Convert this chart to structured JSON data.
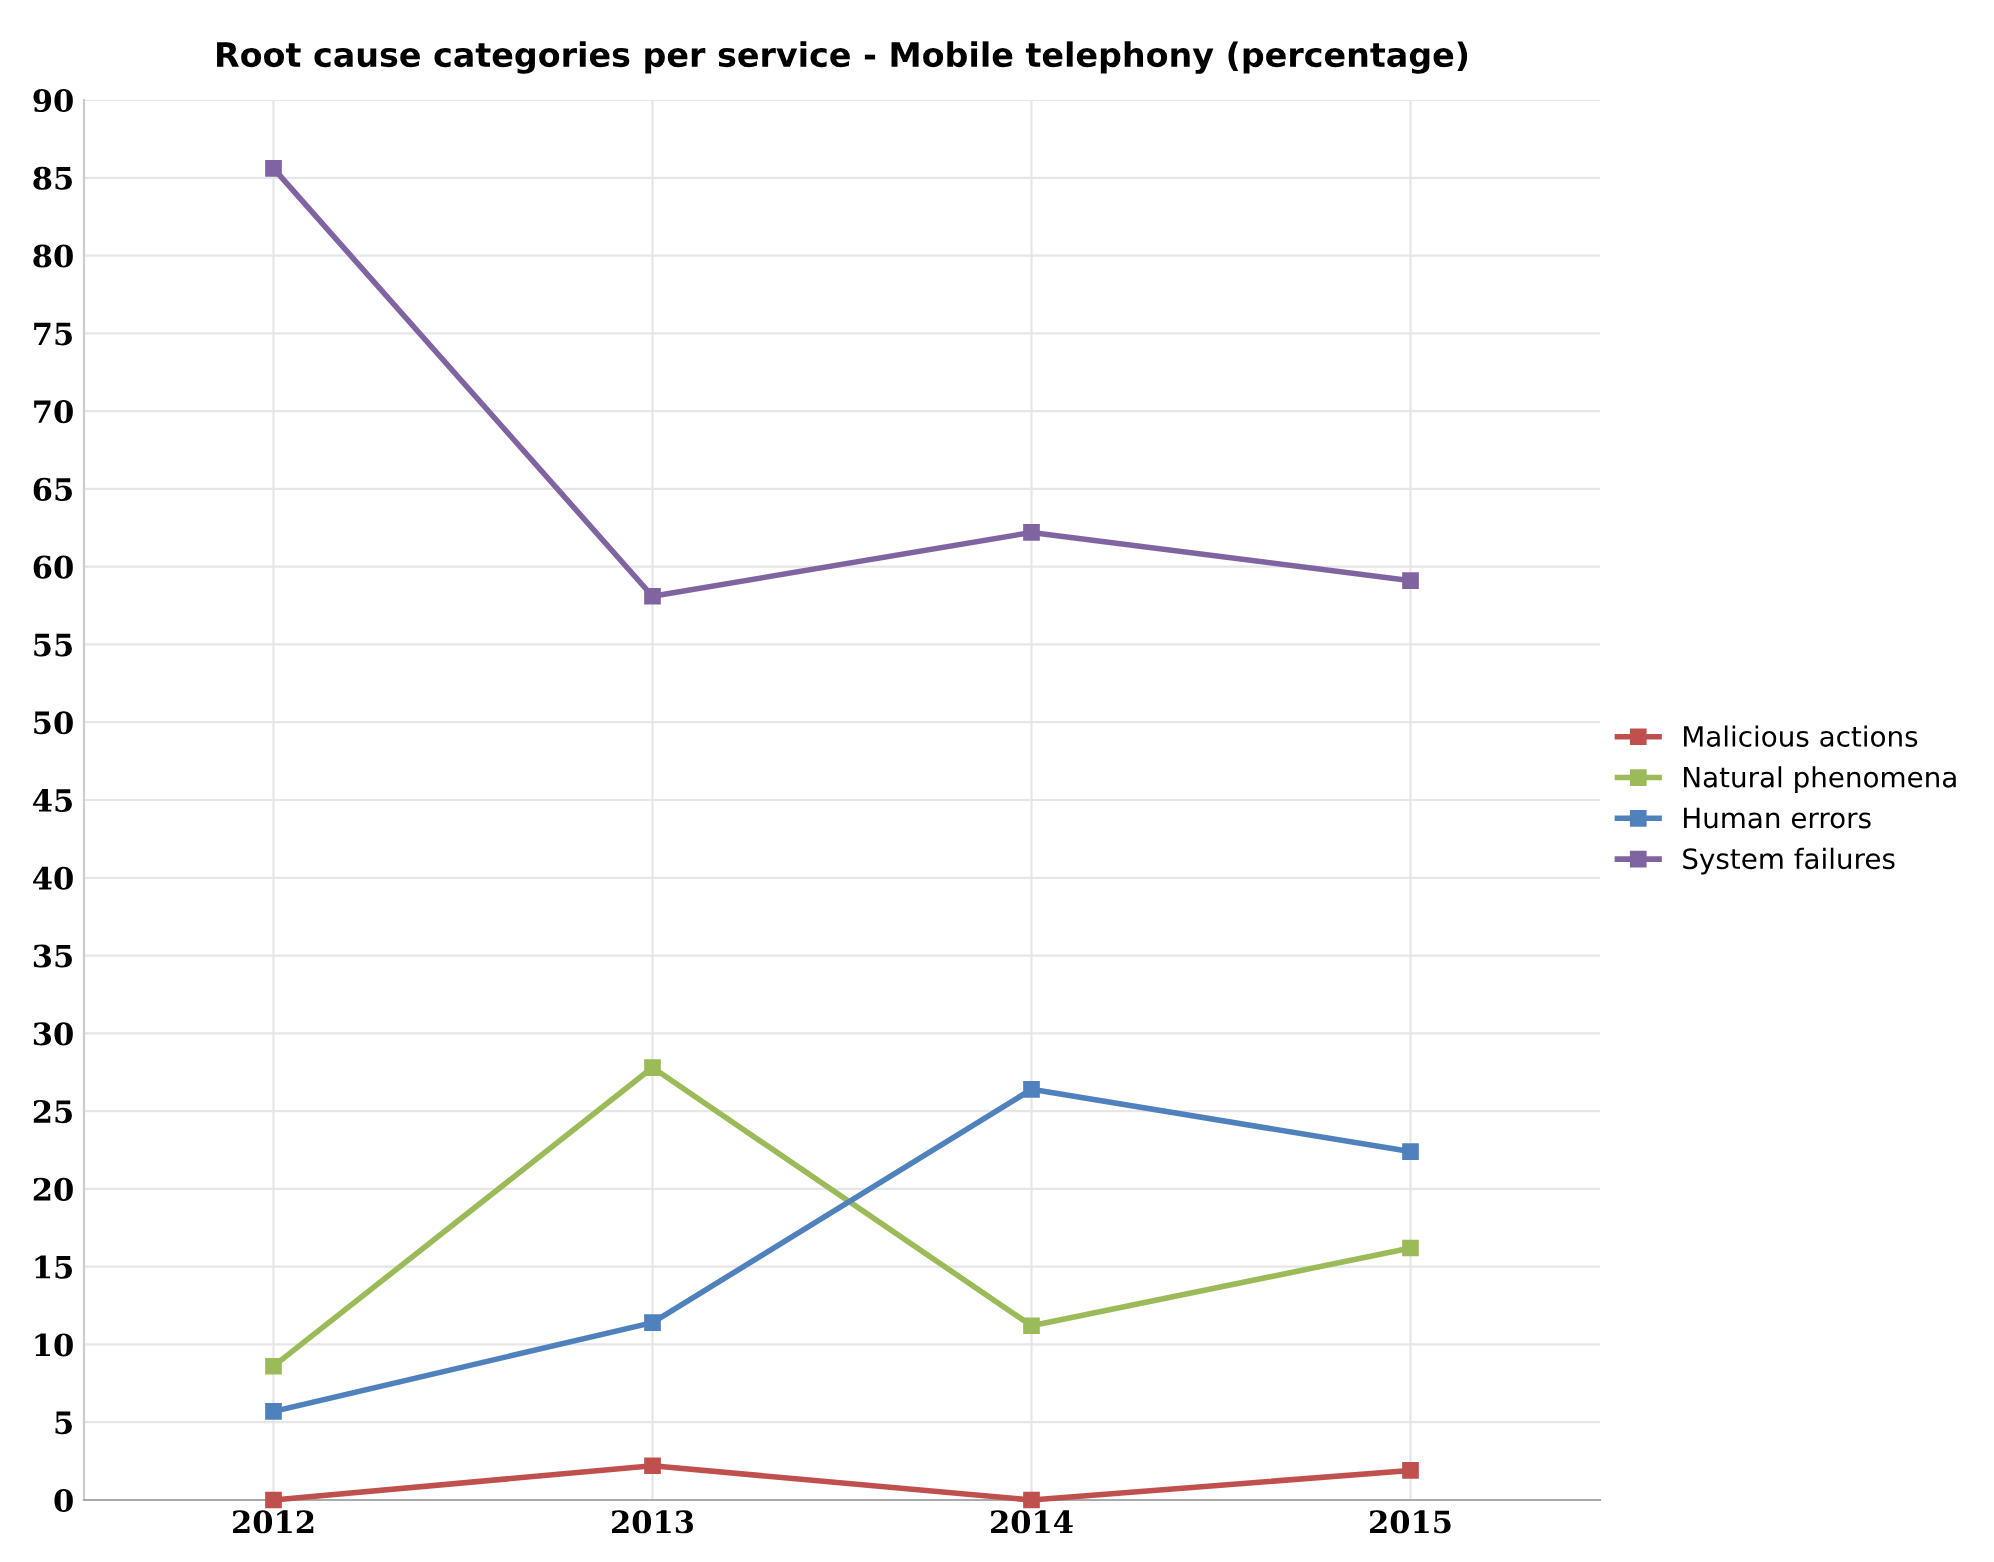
{
  "chart_data": {
    "type": "line",
    "title": "Root cause categories per service - Mobile telephony (percentage)",
    "categories": [
      "2012",
      "2013",
      "2014",
      "2015"
    ],
    "series": [
      {
        "name": "Malicious actions",
        "color": "#c0504d",
        "values": [
          0,
          2.2,
          0,
          1.9
        ]
      },
      {
        "name": "Natural phenomena",
        "color": "#9bbb59",
        "values": [
          8.6,
          27.8,
          11.2,
          16.2
        ]
      },
      {
        "name": "Human errors",
        "color": "#4f81bd",
        "values": [
          5.7,
          11.4,
          26.4,
          22.4
        ]
      },
      {
        "name": "System failures",
        "color": "#8064a2",
        "values": [
          85.6,
          58.1,
          62.2,
          59.1
        ]
      }
    ],
    "ylim": [
      0,
      90
    ],
    "yticks": [
      0,
      5,
      10,
      15,
      20,
      25,
      30,
      35,
      40,
      45,
      50,
      55,
      60,
      65,
      70,
      75,
      80,
      85,
      90
    ],
    "grid": true,
    "legend": "right",
    "marker": "square",
    "line_style": "solid"
  }
}
